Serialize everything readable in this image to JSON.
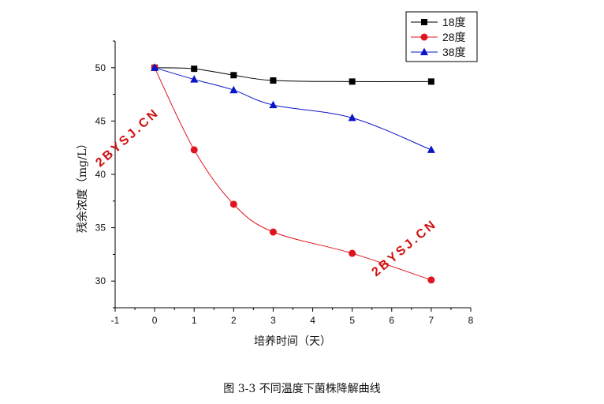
{
  "chart_data": {
    "type": "line",
    "title": "",
    "xlabel": "培养时间（天）",
    "ylabel": "残余浓度（mg/L）",
    "xlim": [
      -1,
      8
    ],
    "ylim": [
      27.5,
      52.5
    ],
    "xticks": [
      -1,
      0,
      1,
      2,
      3,
      4,
      5,
      6,
      7,
      8
    ],
    "yticks": [
      30,
      35,
      40,
      45,
      50
    ],
    "x": [
      0,
      1,
      2,
      3,
      5,
      7
    ],
    "series": [
      {
        "name": "18度",
        "color": "#000000",
        "marker": "square",
        "values": [
          50.0,
          49.9,
          49.3,
          48.8,
          48.7,
          48.7
        ]
      },
      {
        "name": "28度",
        "color": "#e0141e",
        "marker": "circle",
        "values": [
          50.0,
          42.3,
          37.2,
          34.6,
          32.6,
          30.1
        ]
      },
      {
        "name": "38度",
        "color": "#0a14c8",
        "marker": "triangle",
        "values": [
          50.0,
          48.9,
          47.9,
          46.5,
          45.3,
          42.3
        ]
      }
    ],
    "legend_position": "top-right",
    "grid": false
  },
  "caption": "图 3-3 不同温度下菌株降解曲线",
  "watermarks": [
    "2BYSJ.CN",
    "2BYSJ.CN"
  ],
  "colors": {
    "series_18": "#000000",
    "series_28": "#e0141e",
    "series_38": "#0a14c8",
    "watermark": "#d01010"
  }
}
